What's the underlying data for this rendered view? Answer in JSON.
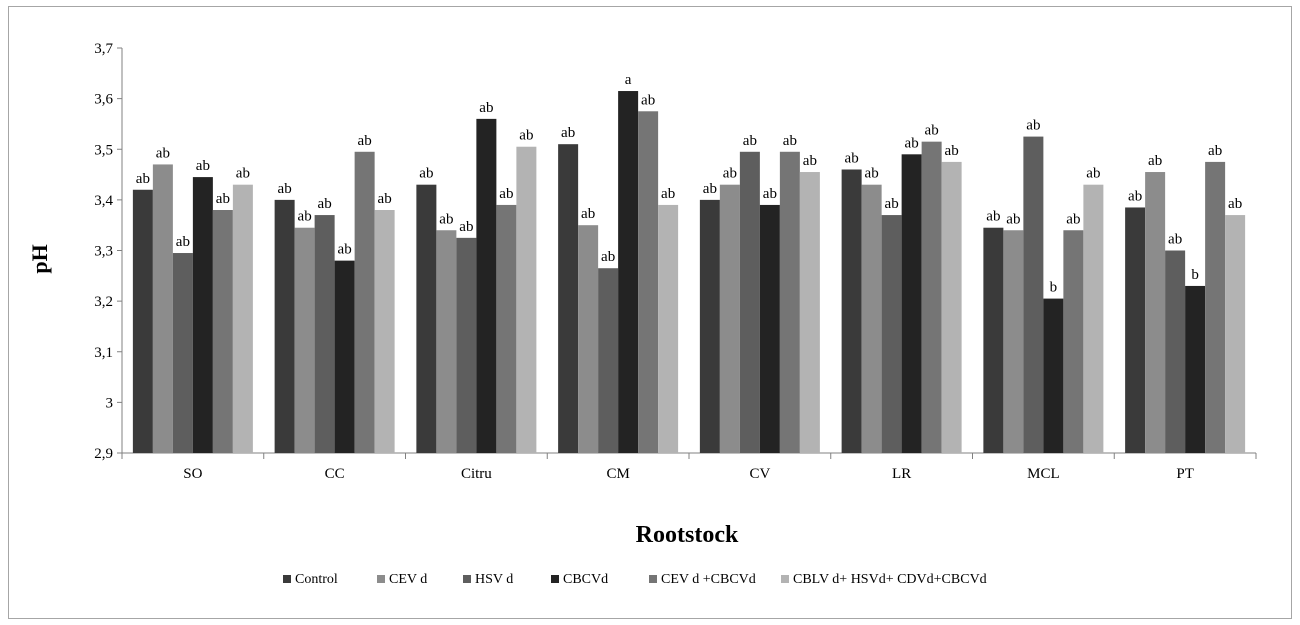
{
  "chart_data": {
    "type": "bar",
    "title": "",
    "xlabel": "Rootstock",
    "ylabel": "pH",
    "ylim": [
      2.9,
      3.7
    ],
    "y_ticks": [
      "2,9",
      "3",
      "3,1",
      "3,2",
      "3,3",
      "3,4",
      "3,5",
      "3,6",
      "3,7"
    ],
    "grid": false,
    "legend_position": "bottom",
    "categories": [
      "SO",
      "CC",
      "Citru",
      "CM",
      "CV",
      "LR",
      "MCL",
      "PT"
    ],
    "series": [
      {
        "name": "Control",
        "color": "#3a3a3a",
        "values": [
          3.42,
          3.4,
          3.43,
          3.51,
          3.4,
          3.46,
          3.345,
          3.385
        ],
        "labels": [
          "ab",
          "ab",
          "ab",
          "ab",
          "ab",
          "ab",
          "ab",
          "ab"
        ]
      },
      {
        "name": "CEV d",
        "color": "#8c8c8c",
        "values": [
          3.47,
          3.345,
          3.34,
          3.35,
          3.43,
          3.43,
          3.34,
          3.455
        ],
        "labels": [
          "ab",
          "ab",
          "ab",
          "ab",
          "ab",
          "ab",
          "ab",
          "ab"
        ]
      },
      {
        "name": "HSV d",
        "color": "#5e5e5e",
        "values": [
          3.295,
          3.37,
          3.325,
          3.265,
          3.495,
          3.37,
          3.525,
          3.3
        ],
        "labels": [
          "ab",
          "ab",
          "ab",
          "ab",
          "ab",
          "ab",
          "ab",
          "ab"
        ]
      },
      {
        "name": "CBCVd",
        "color": "#232323",
        "values": [
          3.445,
          3.28,
          3.56,
          3.615,
          3.39,
          3.49,
          3.205,
          3.23
        ],
        "labels": [
          "ab",
          "ab",
          "ab",
          "a",
          "ab",
          "ab",
          "b",
          "b"
        ]
      },
      {
        "name": "CEV d +CBCVd",
        "color": "#757575",
        "values": [
          3.38,
          3.495,
          3.39,
          3.575,
          3.495,
          3.515,
          3.34,
          3.475
        ],
        "labels": [
          "ab",
          "ab",
          "ab",
          "ab",
          "ab",
          "ab",
          "ab",
          "ab"
        ]
      },
      {
        "name": "CBLV d+ HSVd+ CDVd+CBCVd",
        "color": "#b3b3b3",
        "values": [
          3.43,
          3.38,
          3.505,
          3.39,
          3.455,
          3.475,
          3.43,
          3.37
        ],
        "labels": [
          "ab",
          "ab",
          "ab",
          "ab",
          "ab",
          "ab",
          "ab",
          "ab"
        ]
      }
    ]
  }
}
